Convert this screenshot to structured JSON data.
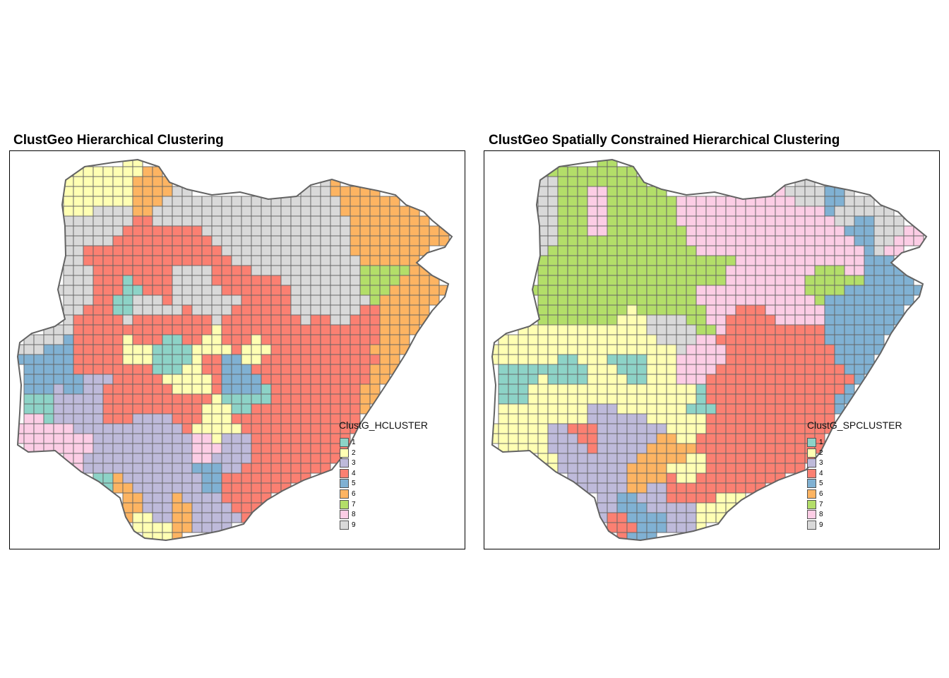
{
  "palette": [
    "#8DD3C7",
    "#FFFFB3",
    "#BEBADA",
    "#FB8072",
    "#80B1D3",
    "#FDB462",
    "#B3DE69",
    "#FCCDE5",
    "#D9D9D9"
  ],
  "border_color": "#636363",
  "maps": [
    {
      "title": "ClustGeo Hierarchical Clustering",
      "legend_title": "ClustG_HCLUSTER",
      "legend_labels": [
        "1",
        "2",
        "3",
        "4",
        "5",
        "6",
        "7",
        "8",
        "9"
      ],
      "dominant_clusters": [
        "9",
        "4",
        "6",
        "3",
        "2"
      ]
    },
    {
      "title": "ClustGeo Spatially Constrained Hierarchical Clustering",
      "legend_title": "ClustG_SPCLUSTER",
      "legend_labels": [
        "1",
        "2",
        "3",
        "4",
        "5",
        "6",
        "7",
        "8",
        "9"
      ],
      "dominant_clusters": [
        "7",
        "8",
        "4",
        "5",
        "2",
        "3"
      ]
    }
  ]
}
